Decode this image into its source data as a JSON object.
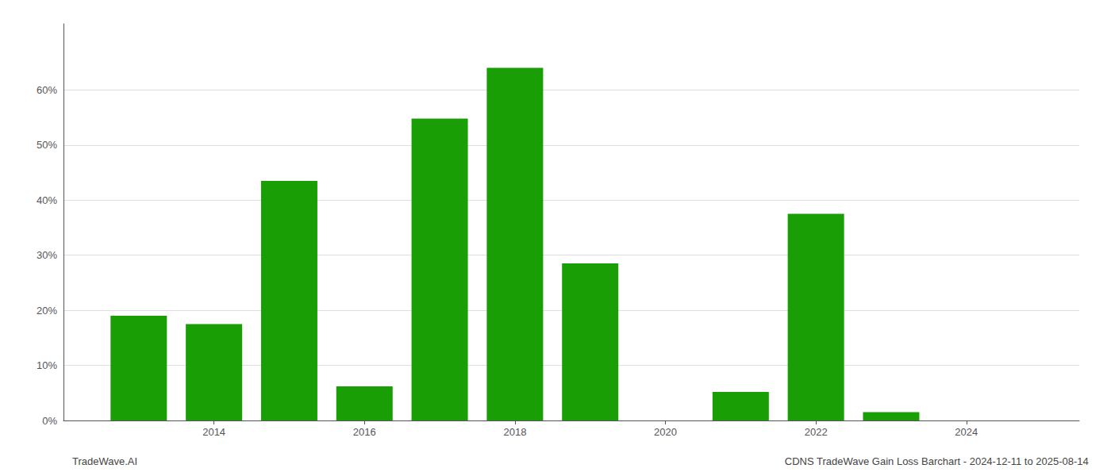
{
  "chart_data": {
    "type": "bar",
    "x": [
      2013,
      2014,
      2015,
      2016,
      2017,
      2018,
      2019,
      2021,
      2022,
      2023
    ],
    "values": [
      0.19,
      0.175,
      0.435,
      0.062,
      0.548,
      0.64,
      0.285,
      0.052,
      0.375,
      0.015
    ],
    "color": "#1a9e06",
    "xlim": [
      2012.0,
      2025.5
    ],
    "xticks": [
      2014,
      2016,
      2018,
      2020,
      2022,
      2024
    ],
    "ylim": [
      0,
      0.72
    ],
    "yticks": [
      {
        "value": 0.0,
        "label": "0%"
      },
      {
        "value": 0.1,
        "label": "10%"
      },
      {
        "value": 0.2,
        "label": "20%"
      },
      {
        "value": 0.3,
        "label": "30%"
      },
      {
        "value": 0.4,
        "label": "40%"
      },
      {
        "value": 0.5,
        "label": "50%"
      },
      {
        "value": 0.6,
        "label": "60%"
      }
    ],
    "grid": true,
    "annotations": [
      "TradeWave.AI",
      "CDNS TradeWave Gain Loss Barchart - 2024-12-11 to 2025-08-14"
    ]
  }
}
